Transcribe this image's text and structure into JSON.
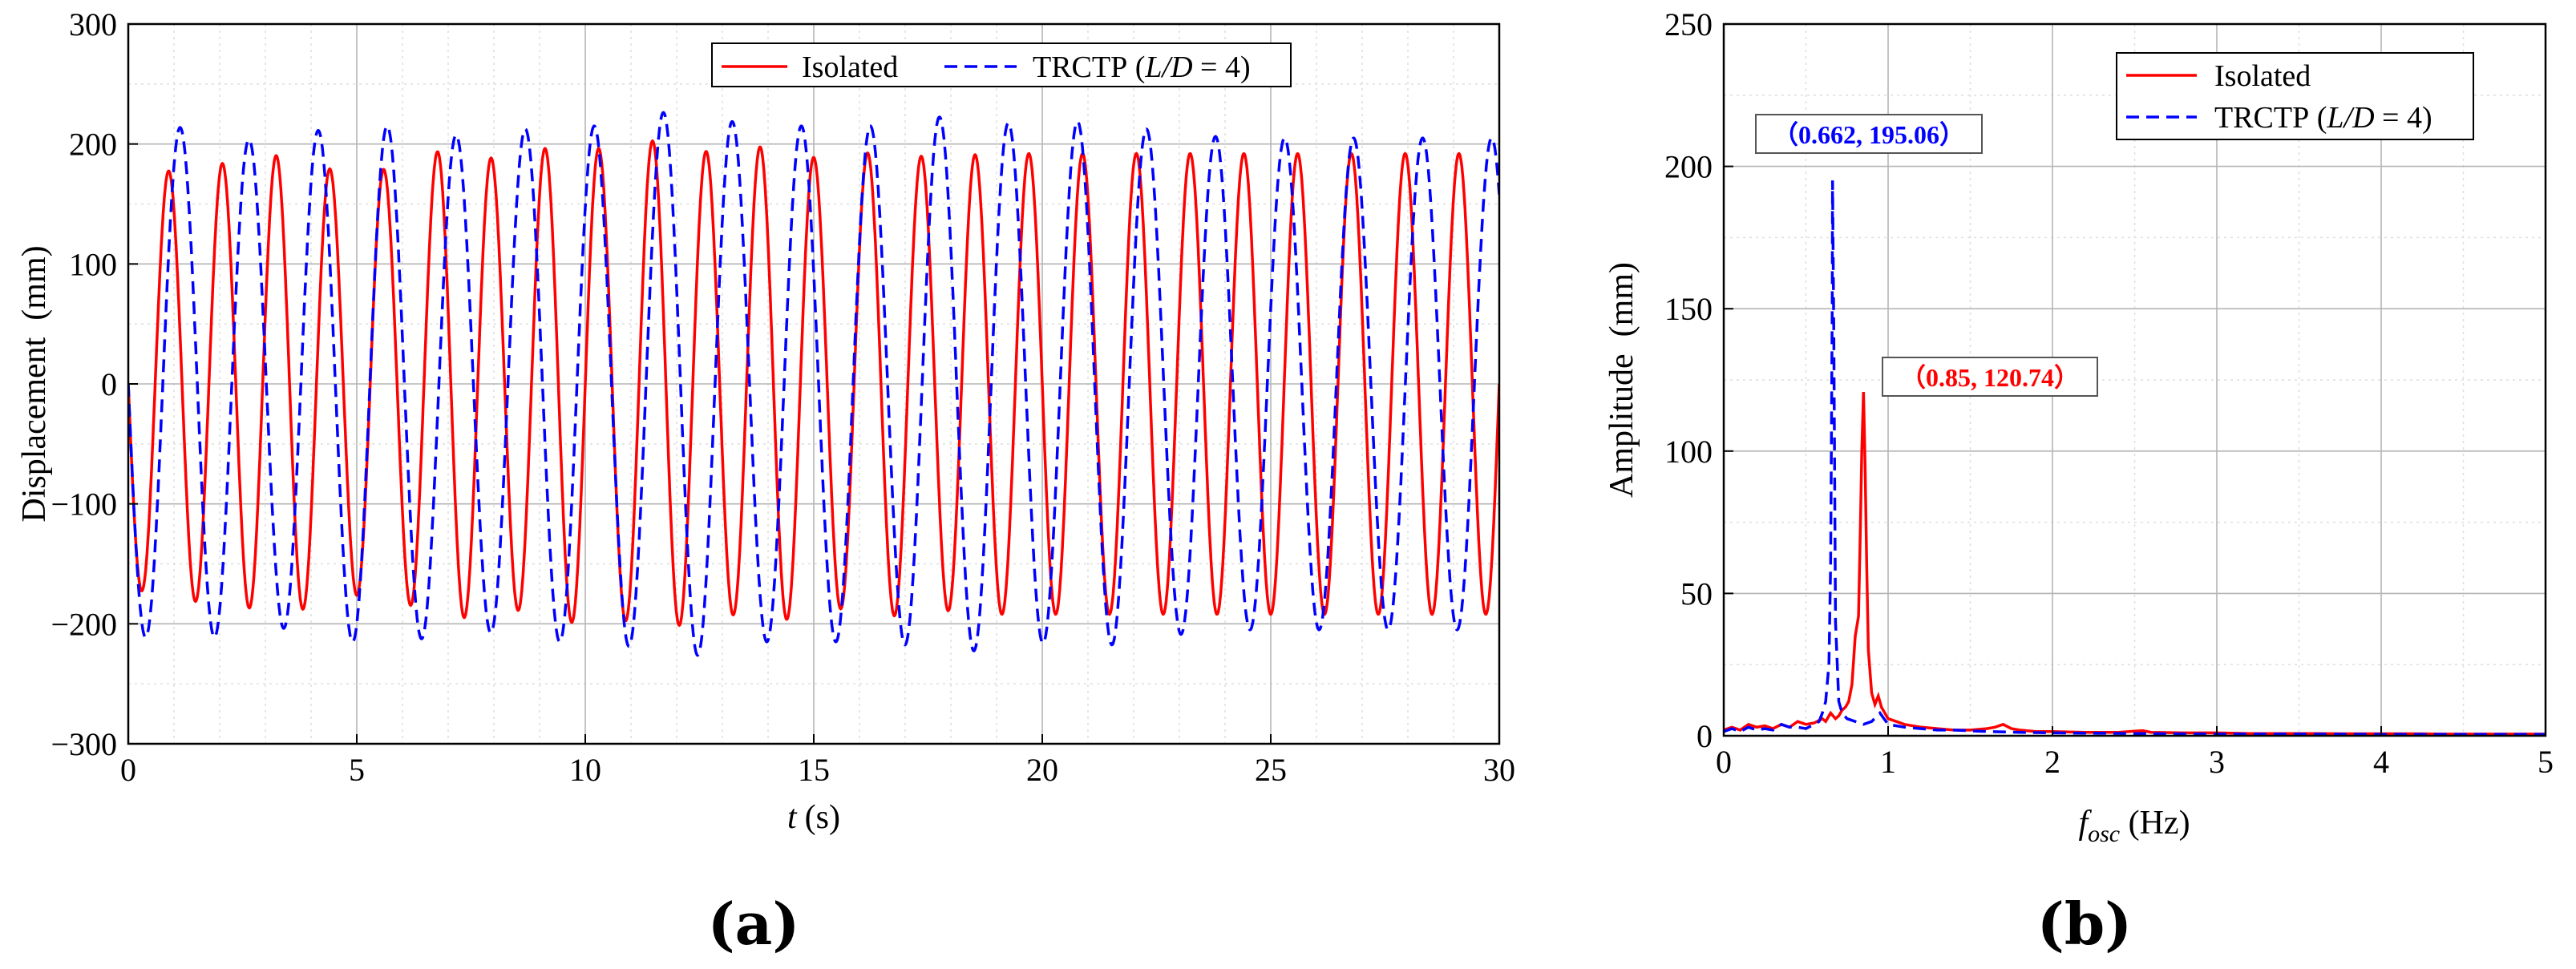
{
  "colors": {
    "isolated": "#ff0000",
    "trctp": "#0000ff",
    "grid_major": "#b5b5b5",
    "grid_minor": "#dedede"
  },
  "chart_data": [
    {
      "panel_label": "(a)",
      "type": "line",
      "title": "",
      "xlabel_var": "t",
      "xlabel_unit": "(s)",
      "ylabel": "Displacement  (mm)",
      "xlim": [
        0,
        30
      ],
      "ylim": [
        -300,
        300
      ],
      "xticks": [
        0,
        5,
        10,
        15,
        20,
        25,
        30
      ],
      "xtick_labels": [
        "0",
        "5",
        "10",
        "15",
        "20",
        "25",
        "30"
      ],
      "yticks": [
        -300,
        -200,
        -100,
        0,
        100,
        200,
        300
      ],
      "ytick_labels": [
        "−300",
        "−200",
        "−100",
        "0",
        "100",
        "200",
        "300"
      ],
      "grid": true,
      "legend_position": "top-right",
      "legend_layout": "horizontal",
      "series": [
        {
          "name": "Isolated",
          "style": "solid",
          "color": "#ff0000",
          "signal": {
            "frequency_hz": 0.85,
            "amplitudes_mm": [
              170,
              180,
              185,
              192,
              175,
              180,
              198,
              185,
              200,
              195,
              205,
              190,
              200,
              185,
              195,
              188,
              192
            ],
            "t_start": 0,
            "t_end": 30,
            "samples": 3000
          }
        },
        {
          "name": "TRCTP (",
          "name_italic": "L/D",
          "name_suffix": " = 4)",
          "style": "dashed",
          "color": "#0000ff",
          "signal": {
            "frequency_hz": 0.662,
            "amplitudes_mm": [
              210,
              215,
              200,
              215,
              215,
              205,
              215,
              215,
              230,
              215,
              215,
              215,
              225,
              215,
              220,
              210,
              205
            ],
            "t_start": 0,
            "t_end": 30,
            "samples": 3000
          }
        }
      ]
    },
    {
      "panel_label": "(b)",
      "type": "line",
      "title": "",
      "xlabel_var": "f",
      "xlabel_sub": "osc",
      "xlabel_unit": " (Hz)",
      "ylabel": "Amplitude  (mm)",
      "xlim": [
        0,
        5
      ],
      "ylim": [
        0,
        250
      ],
      "xticks": [
        0,
        1,
        2,
        3,
        4,
        5
      ],
      "xtick_labels": [
        "0",
        "1",
        "2",
        "3",
        "4",
        "5"
      ],
      "yticks": [
        0,
        50,
        100,
        150,
        200,
        250
      ],
      "ytick_labels": [
        "0",
        "50",
        "100",
        "150",
        "200",
        "250"
      ],
      "grid": true,
      "legend_position": "top-right",
      "legend_layout": "vertical",
      "series": [
        {
          "name": "Isolated",
          "style": "solid",
          "color": "#ff0000",
          "x": [
            0.0,
            0.05,
            0.1,
            0.15,
            0.2,
            0.25,
            0.3,
            0.35,
            0.4,
            0.45,
            0.5,
            0.55,
            0.6,
            0.62,
            0.65,
            0.68,
            0.7,
            0.72,
            0.74,
            0.76,
            0.78,
            0.8,
            0.82,
            0.83,
            0.84,
            0.85,
            0.86,
            0.87,
            0.88,
            0.9,
            0.92,
            0.94,
            0.96,
            0.98,
            1.0,
            1.05,
            1.1,
            1.2,
            1.3,
            1.4,
            1.5,
            1.6,
            1.65,
            1.7,
            1.75,
            1.8,
            1.9,
            2.0,
            2.2,
            2.4,
            2.55,
            2.6,
            2.8,
            3.0,
            3.2,
            3.4,
            3.6,
            3.8,
            4.0,
            4.2,
            4.4,
            4.6,
            4.8,
            5.0
          ],
          "y": [
            2.0,
            3.0,
            2.0,
            4.0,
            3.0,
            3.5,
            2.5,
            4.0,
            3.0,
            5.0,
            4.0,
            4.5,
            6.0,
            5.0,
            8.0,
            6.0,
            7.0,
            9.0,
            10.0,
            12.0,
            18.0,
            35.0,
            42.0,
            70.0,
            100.0,
            120.74,
            95.0,
            60.0,
            30.0,
            15.0,
            11.0,
            14.0,
            10.0,
            8.0,
            6.0,
            5.0,
            4.0,
            3.0,
            2.5,
            2.0,
            2.0,
            2.5,
            3.0,
            4.0,
            2.5,
            2.0,
            1.5,
            1.5,
            1.2,
            1.2,
            1.8,
            1.2,
            1.0,
            1.0,
            0.8,
            0.8,
            0.8,
            0.7,
            0.7,
            0.7,
            0.6,
            0.6,
            0.6,
            0.6
          ]
        },
        {
          "name": "TRCTP (",
          "name_italic": "L/D",
          "name_suffix": " = 4)",
          "style": "dashed",
          "color": "#0000ff",
          "x": [
            0.0,
            0.05,
            0.1,
            0.15,
            0.2,
            0.25,
            0.3,
            0.35,
            0.4,
            0.45,
            0.5,
            0.55,
            0.58,
            0.6,
            0.62,
            0.64,
            0.65,
            0.66,
            0.662,
            0.67,
            0.68,
            0.7,
            0.72,
            0.75,
            0.8,
            0.85,
            0.9,
            0.95,
            1.0,
            1.1,
            1.2,
            1.3,
            1.4,
            1.6,
            1.8,
            2.0,
            2.5,
            3.0,
            3.5,
            4.0,
            4.5,
            5.0
          ],
          "y": [
            1.5,
            2.5,
            1.5,
            3.0,
            2.0,
            2.5,
            2.0,
            4.0,
            3.0,
            3.0,
            2.5,
            4.0,
            5.0,
            8.0,
            12.0,
            25.0,
            60.0,
            150.0,
            195.06,
            140.0,
            40.0,
            12.0,
            8.0,
            6.0,
            5.0,
            4.0,
            5.0,
            8.0,
            4.0,
            3.0,
            2.5,
            2.0,
            2.0,
            1.5,
            1.2,
            1.0,
            0.8,
            0.6,
            0.6,
            0.5,
            0.5,
            0.5
          ]
        }
      ],
      "annotations": [
        {
          "text": "（0.662, 195.06）",
          "color": "#0000ff",
          "x": 0.662,
          "y": 195.06
        },
        {
          "text": "（0.85, 120.74）",
          "color": "#ff0000",
          "x": 0.85,
          "y": 120.74
        }
      ]
    }
  ]
}
